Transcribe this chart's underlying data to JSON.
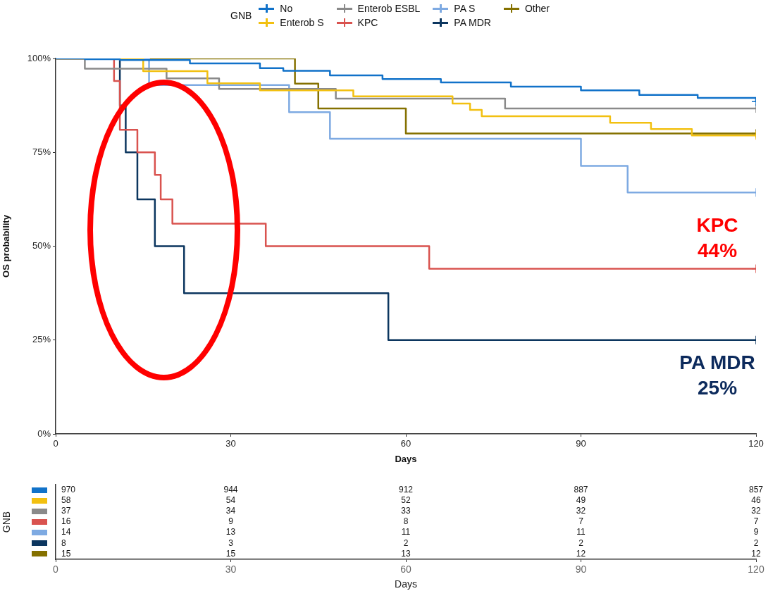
{
  "chart_data": [
    {
      "type": "step",
      "xlabel": "Days",
      "ylabel": "OS probability",
      "legend_title": "GNB",
      "legend": "top",
      "grid": false,
      "line_style": "solid",
      "xlim": [
        0,
        120
      ],
      "xticks": [
        0,
        30,
        60,
        90,
        120
      ],
      "ylim": [
        0,
        100
      ],
      "yticks": [
        {
          "value": 0,
          "label": "0%"
        },
        {
          "value": 25,
          "label": "25%"
        },
        {
          "value": 50,
          "label": "50%"
        },
        {
          "value": 75,
          "label": "75%"
        },
        {
          "value": 100,
          "label": "100%"
        }
      ],
      "series": [
        {
          "name": "No",
          "color": "#1172c9",
          "x": [
            0,
            5,
            11,
            23,
            35,
            39,
            47,
            56,
            66,
            78,
            90,
            100,
            110,
            120
          ],
          "values": [
            100,
            99.8,
            99.6,
            98.7,
            97.4,
            96.7,
            95.5,
            94.5,
            93.6,
            92.5,
            91.5,
            90.3,
            89.5,
            88.5
          ]
        },
        {
          "name": "Enterob S",
          "color": "#f2c011",
          "x": [
            0,
            15,
            26,
            35,
            51,
            68,
            71,
            73,
            95,
            102,
            109,
            120
          ],
          "values": [
            100,
            96.6,
            93.4,
            91.5,
            89.9,
            88,
            86.3,
            84.6,
            82.9,
            81.2,
            79.5,
            79.5
          ]
        },
        {
          "name": "Enterob ESBL",
          "color": "#8a8a8a",
          "x": [
            0,
            5,
            19,
            28,
            48,
            77,
            120
          ],
          "values": [
            100,
            97.3,
            94.7,
            91.9,
            89.3,
            86.7,
            86.7
          ]
        },
        {
          "name": "KPC",
          "color": "#d9534f",
          "x": [
            0,
            10,
            11,
            14,
            17,
            18,
            20,
            36,
            64,
            120
          ],
          "values": [
            100,
            94,
            81,
            75,
            69,
            62.5,
            56,
            50,
            44,
            44
          ]
        },
        {
          "name": "PA S",
          "color": "#7eaae2",
          "x": [
            0,
            16,
            40,
            47,
            90,
            98,
            120
          ],
          "values": [
            100,
            92.9,
            85.7,
            78.6,
            71.4,
            64.3,
            64.3
          ]
        },
        {
          "name": "PA MDR",
          "color": "#0c365f",
          "x": [
            0,
            11,
            12,
            14,
            17,
            22,
            57,
            120
          ],
          "values": [
            100,
            87.5,
            75,
            62.5,
            50,
            37.5,
            25,
            25
          ]
        },
        {
          "name": "Other",
          "color": "#857100",
          "x": [
            0,
            41,
            45,
            60,
            120
          ],
          "values": [
            100,
            93.3,
            86.7,
            80,
            80
          ]
        }
      ],
      "annotations": [
        {
          "text": "KPC\n44%",
          "x": 120,
          "y": 44
        },
        {
          "text": "PA MDR\n25%",
          "x": 120,
          "y": 25
        }
      ]
    },
    {
      "type": "heatmap",
      "xlabel": "Days",
      "ylabel": "GNB",
      "data_labels": true,
      "grid": false,
      "categories": [
        "0",
        "30",
        "60",
        "90",
        "120"
      ],
      "y_categories": [
        null,
        null,
        null,
        null,
        null,
        null,
        null
      ],
      "colors": [
        "#1172c9",
        "#f2c011",
        "#8a8a8a",
        "#d9534f",
        "#7eaae2",
        "#0c365f",
        "#857100"
      ],
      "cells": [
        [
          970,
          944,
          912,
          887,
          857
        ],
        [
          58,
          54,
          52,
          49,
          46
        ],
        [
          37,
          34,
          33,
          32,
          32
        ],
        [
          16,
          9,
          8,
          7,
          7
        ],
        [
          14,
          13,
          11,
          11,
          9
        ],
        [
          8,
          3,
          2,
          2,
          2
        ],
        [
          15,
          15,
          13,
          12,
          12
        ]
      ]
    }
  ]
}
